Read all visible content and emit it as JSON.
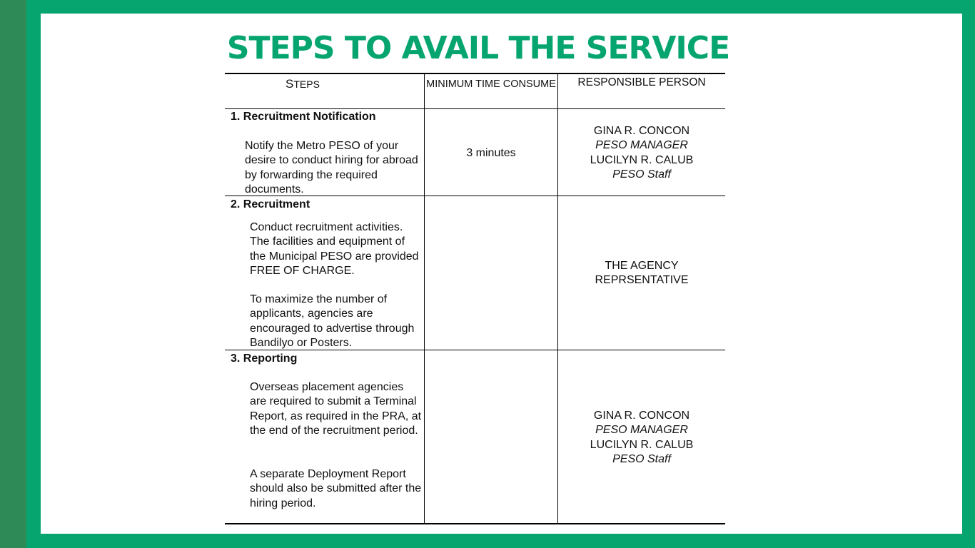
{
  "title": "STEPS TO AVAIL  THE SERVICE",
  "table": {
    "headers": {
      "steps": "Steps",
      "time": "MINIMUM TIME CONSUME",
      "person": "RESPONSIBLE PERSON"
    },
    "rows": [
      {
        "step_title": "1.  Recruitment Notification",
        "paragraphs": [
          "Notify the Metro PESO of your desire to conduct hiring for abroad by forwarding the required documents."
        ],
        "time": "3 minutes",
        "persons": [
          {
            "name": "GINA R. CONCON",
            "role": "PESO MANAGER"
          },
          {
            "name": "LUCILYN R. CALUB",
            "role": "PESO Staff"
          }
        ]
      },
      {
        "step_title": "2.  Recruitment",
        "paragraphs": [
          "Conduct recruitment activities. The facilities and equipment of the Municipal PESO are provided FREE OF CHARGE.",
          "To maximize the number of applicants, agencies are encouraged to advertise through Bandilyo or Posters."
        ],
        "time": "",
        "persons_text": [
          "THE AGENCY",
          "REPRSENTATIVE"
        ]
      },
      {
        "step_title": "3.  Reporting",
        "paragraphs": [
          "Overseas placement agencies are required to submit a Terminal Report, as required in the PRA, at the end of the recruitment period.",
          "A separate Deployment Report should also be submitted after the hiring period."
        ],
        "time": "",
        "persons": [
          {
            "name": "GINA R. CONCON",
            "role": "PESO MANAGER"
          },
          {
            "name": "LUCILYN R. CALUB",
            "role": "PESO Staff"
          }
        ]
      }
    ]
  },
  "colors": {
    "frame_green": "#06a570",
    "left_strip": "#2e8b57",
    "title_green": "#06a570"
  }
}
